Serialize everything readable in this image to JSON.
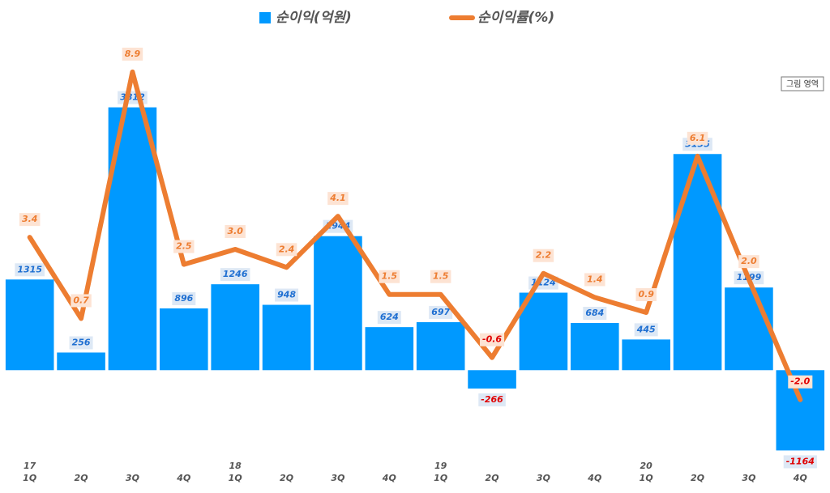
{
  "chart_data": {
    "type": "bar-line",
    "categories": [
      "1Q",
      "2Q",
      "3Q",
      "4Q",
      "1Q",
      "2Q",
      "3Q",
      "4Q",
      "1Q",
      "2Q",
      "3Q",
      "4Q",
      "1Q",
      "2Q",
      "3Q",
      "4Q"
    ],
    "year_labels": [
      "17",
      null,
      null,
      null,
      "18",
      null,
      null,
      null,
      "19",
      null,
      null,
      null,
      "20",
      null,
      null,
      null
    ],
    "series": [
      {
        "name": "순이익(억원)",
        "type": "bar",
        "color": "#0099ff",
        "values": [
          1315,
          256,
          3812,
          896,
          1246,
          948,
          1944,
          624,
          697,
          -266,
          1124,
          684,
          445,
          3135,
          1199,
          -1164
        ]
      },
      {
        "name": "순이익률(%)",
        "type": "line",
        "axis": "y2",
        "color": "#ed7d31",
        "values": [
          3.4,
          0.7,
          8.9,
          2.5,
          3.0,
          2.4,
          4.1,
          1.5,
          1.5,
          -0.6,
          2.2,
          1.4,
          0.9,
          6.1,
          2.0,
          -2.0
        ],
        "value_labels": [
          "3.4",
          "0.7",
          "8.9",
          "2.5",
          "3.0",
          "2.4",
          "4.1",
          "1.5",
          "1.5",
          "-0.6",
          "2.2",
          "1.4",
          "0.9",
          "6.1",
          "2.0",
          "-2.0"
        ]
      }
    ],
    "ylim": [
      -1300,
      4500
    ],
    "y2lim": [
      -4,
      9.3
    ],
    "tooltip": "그림 영역"
  }
}
